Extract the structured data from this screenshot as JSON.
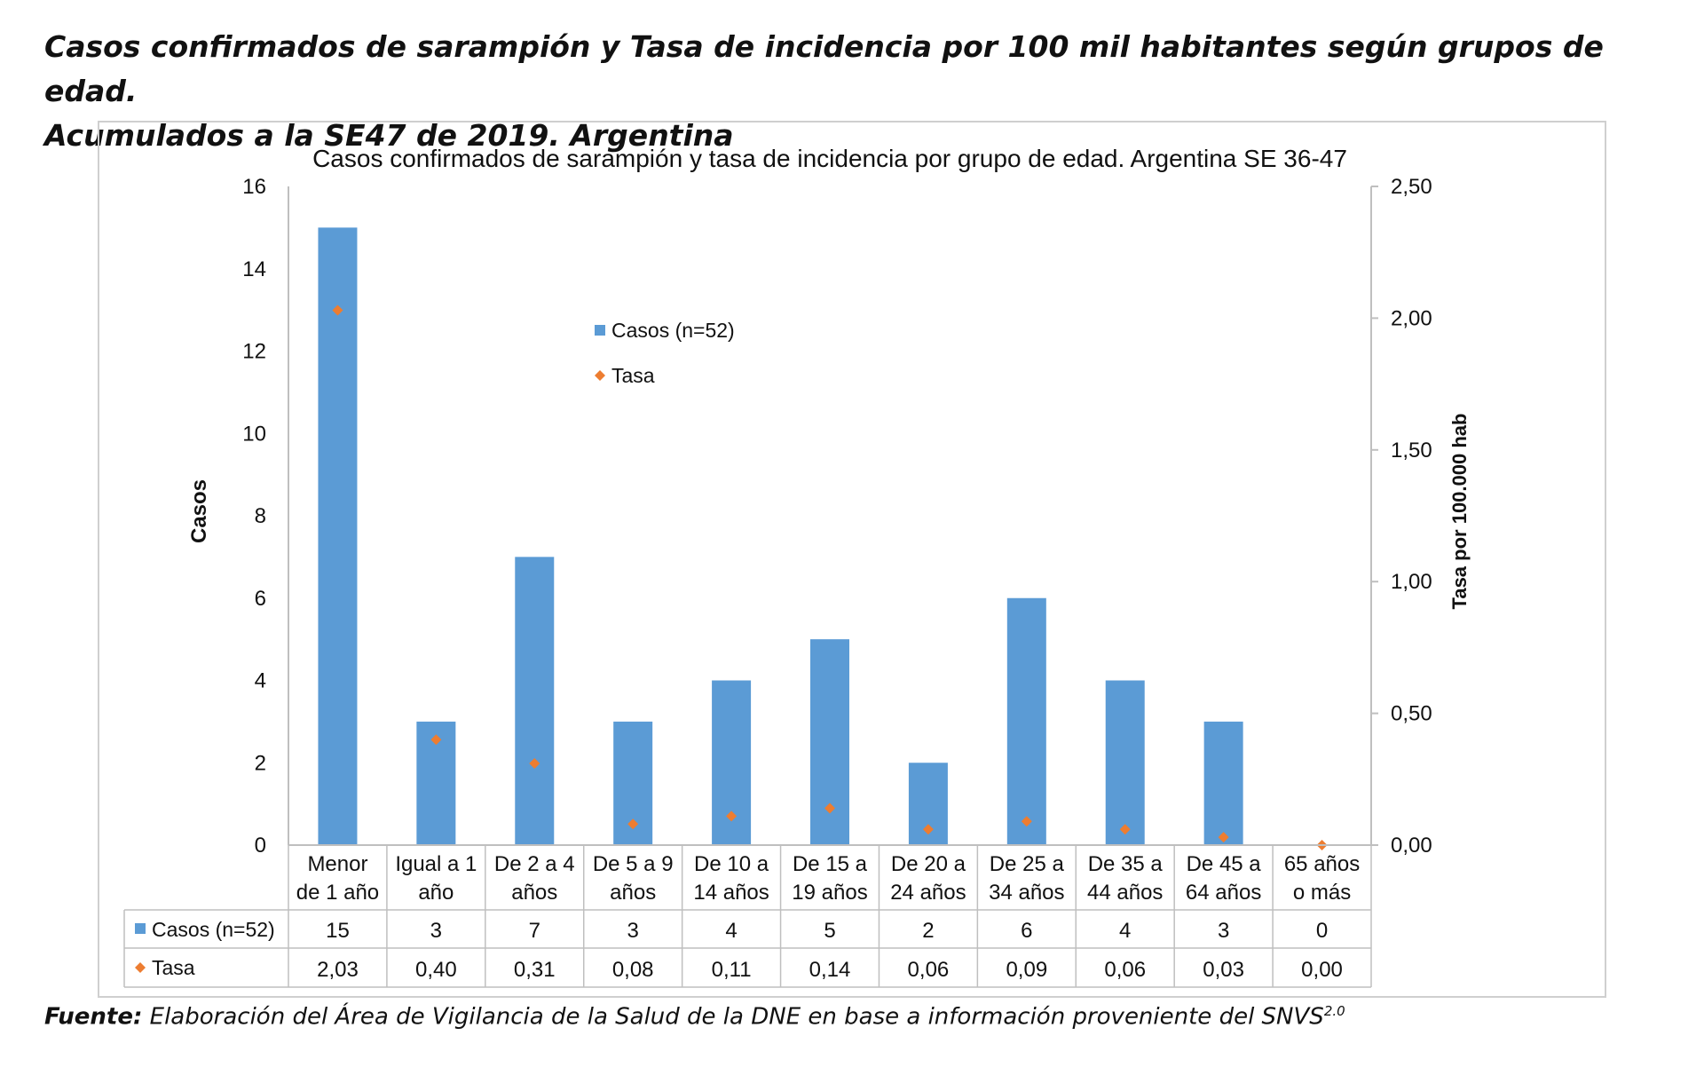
{
  "page": {
    "title_line1": "Casos confirmados de sarampión y Tasa de incidencia por 100 mil habitantes según grupos de edad.",
    "title_line2": "Acumulados a la SE47 de 2019. Argentina",
    "footer_label": "Fuente:",
    "footer_text": "Elaboración del Área de Vigilancia de la Salud de la DNE en base a información proveniente del SNVS",
    "footer_sup": "2.0"
  },
  "colors": {
    "bar": "#5B9BD5",
    "marker": "#ED7D31",
    "axis": "#BFBFBF"
  },
  "chart_data": {
    "type": "bar",
    "title": "Casos confirmados de sarampión  y tasa de incidencia por grupo de edad. Argentina SE 36-47",
    "ylabel": "Casos",
    "y2label": "Tasa por 100.000 hab",
    "ylim": [
      0,
      16
    ],
    "y_ticks": [
      "0",
      "2",
      "4",
      "6",
      "8",
      "10",
      "12",
      "14",
      "16"
    ],
    "y2lim": [
      0,
      2.5
    ],
    "y2_ticks": [
      "0,00",
      "0,50",
      "1,00",
      "1,50",
      "2,00",
      "2,50"
    ],
    "legend_position": "center-left",
    "categories": [
      [
        "Menor",
        "de 1 año"
      ],
      [
        "Igual a 1",
        "año"
      ],
      [
        "De 2 a 4",
        "años"
      ],
      [
        "De 5 a 9",
        "años"
      ],
      [
        "De 10 a",
        "14 años"
      ],
      [
        "De 15 a",
        "19 años"
      ],
      [
        "De 20 a",
        "24 años"
      ],
      [
        "De 25 a",
        "34 años"
      ],
      [
        "De 35 a",
        "44 años"
      ],
      [
        "De 45 a",
        "64 años"
      ],
      [
        "65 años",
        "o más"
      ]
    ],
    "series": [
      {
        "name": "Casos (n=52)",
        "type": "bar",
        "axis": "left",
        "values": [
          15,
          3,
          7,
          3,
          4,
          5,
          2,
          6,
          4,
          3,
          0
        ],
        "labels": [
          "15",
          "3",
          "7",
          "3",
          "4",
          "5",
          "2",
          "6",
          "4",
          "3",
          "0"
        ]
      },
      {
        "name": "Tasa",
        "type": "scatter",
        "axis": "right",
        "values": [
          2.03,
          0.4,
          0.31,
          0.08,
          0.11,
          0.14,
          0.06,
          0.09,
          0.06,
          0.03,
          0.0
        ],
        "labels": [
          "2,03",
          "0,40",
          "0,31",
          "0,08",
          "0,11",
          "0,14",
          "0,06",
          "0,09",
          "0,06",
          "0,03",
          "0,00"
        ]
      }
    ]
  }
}
